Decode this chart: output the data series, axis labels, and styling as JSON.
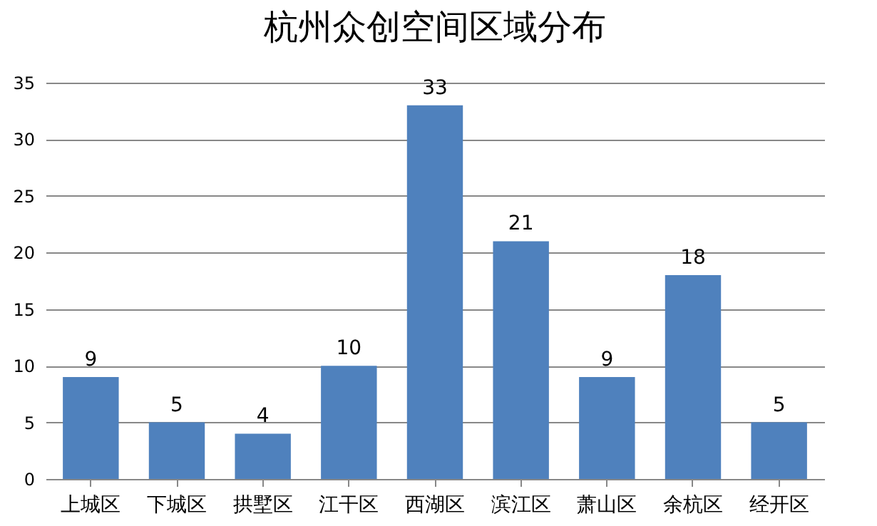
{
  "chart_data": {
    "type": "bar",
    "title": "杭州众创空间区域分布",
    "categories": [
      "上城区",
      "下城区",
      "拱墅区",
      "江干区",
      "西湖区",
      "滨江区",
      "萧山区",
      "余杭区",
      "经开区"
    ],
    "values": [
      9,
      5,
      4,
      10,
      33,
      21,
      9,
      18,
      5
    ],
    "color": "#4f81bd",
    "ylim": [
      0,
      35
    ],
    "yticks": [
      0,
      5,
      10,
      15,
      20,
      25,
      30,
      35
    ],
    "grid": "y",
    "data_labels": true
  }
}
